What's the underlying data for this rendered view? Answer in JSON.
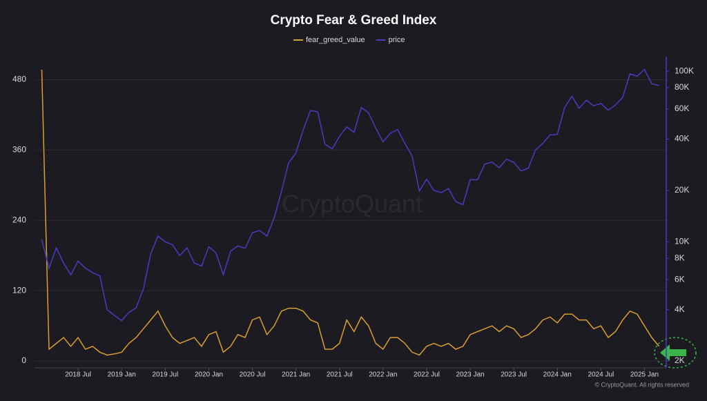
{
  "chart_data": {
    "type": "line",
    "title": "Crypto Fear & Greed Index",
    "watermark": "CryptoQuant",
    "footer": "© CryptoQuant. All rights reserved",
    "x": [
      "2018-02",
      "2018-03",
      "2018-04",
      "2018-05",
      "2018-06",
      "2018-07",
      "2018-08",
      "2018-09",
      "2018-10",
      "2018-11",
      "2018-12",
      "2019-01",
      "2019-02",
      "2019-03",
      "2019-04",
      "2019-05",
      "2019-06",
      "2019-07",
      "2019-08",
      "2019-09",
      "2019-10",
      "2019-11",
      "2019-12",
      "2020-01",
      "2020-02",
      "2020-03",
      "2020-04",
      "2020-05",
      "2020-06",
      "2020-07",
      "2020-08",
      "2020-09",
      "2020-10",
      "2020-11",
      "2020-12",
      "2021-01",
      "2021-02",
      "2021-03",
      "2021-04",
      "2021-05",
      "2021-06",
      "2021-07",
      "2021-08",
      "2021-09",
      "2021-10",
      "2021-11",
      "2021-12",
      "2022-01",
      "2022-02",
      "2022-03",
      "2022-04",
      "2022-05",
      "2022-06",
      "2022-07",
      "2022-08",
      "2022-09",
      "2022-10",
      "2022-11",
      "2022-12",
      "2023-01",
      "2023-02",
      "2023-03",
      "2023-04",
      "2023-05",
      "2023-06",
      "2023-07",
      "2023-08",
      "2023-09",
      "2023-10",
      "2023-11",
      "2023-12",
      "2024-01",
      "2024-02",
      "2024-03",
      "2024-04",
      "2024-05",
      "2024-06",
      "2024-07",
      "2024-08",
      "2024-09",
      "2024-10",
      "2024-11",
      "2024-12",
      "2025-01",
      "2025-02",
      "2025-03"
    ],
    "series": [
      {
        "name": "fear_greed_value",
        "color": "#d9a030",
        "values": [
          497,
          20,
          30,
          40,
          25,
          40,
          20,
          25,
          15,
          10,
          12,
          15,
          30,
          40,
          55,
          70,
          85,
          60,
          40,
          30,
          35,
          40,
          25,
          45,
          50,
          15,
          25,
          45,
          40,
          70,
          75,
          45,
          60,
          85,
          90,
          90,
          85,
          70,
          65,
          20,
          20,
          30,
          70,
          50,
          75,
          60,
          30,
          20,
          40,
          40,
          30,
          15,
          10,
          25,
          30,
          25,
          30,
          20,
          25,
          45,
          50,
          55,
          60,
          50,
          60,
          55,
          40,
          45,
          55,
          70,
          75,
          65,
          80,
          80,
          70,
          70,
          55,
          60,
          40,
          50,
          70,
          85,
          80,
          60,
          40,
          25
        ]
      },
      {
        "name": "price",
        "color": "#4a3bc0",
        "axis": "y2",
        "values": [
          10300,
          7000,
          9200,
          7500,
          6400,
          7700,
          7000,
          6600,
          6300,
          4000,
          3700,
          3450,
          3850,
          4100,
          5300,
          8500,
          10800,
          10000,
          9600,
          8300,
          9200,
          7500,
          7200,
          9350,
          8600,
          6400,
          8800,
          9450,
          9150,
          11300,
          11650,
          10800,
          13800,
          19700,
          29000,
          33100,
          45200,
          58800,
          57700,
          37300,
          35000,
          41500,
          47100,
          43800,
          61300,
          57000,
          46300,
          38500,
          43200,
          45500,
          37700,
          31800,
          19800,
          23300,
          20000,
          19400,
          20500,
          17200,
          16500,
          23100,
          23100,
          28500,
          29300,
          27200,
          30500,
          29200,
          26000,
          27000,
          34500,
          37700,
          42300,
          42600,
          61200,
          71300,
          60700,
          67500,
          62700,
          64600,
          59000,
          63300,
          70300,
          96400,
          93400,
          102400,
          84400,
          82500
        ]
      }
    ],
    "xlim": [
      "2018-01",
      "2025-04"
    ],
    "xticks": [
      {
        "value": "2018-07",
        "label": "2018 Jul"
      },
      {
        "value": "2019-01",
        "label": "2019 Jan"
      },
      {
        "value": "2019-07",
        "label": "2019 Jul"
      },
      {
        "value": "2020-01",
        "label": "2020 Jan"
      },
      {
        "value": "2020-07",
        "label": "2020 Jul"
      },
      {
        "value": "2021-01",
        "label": "2021 Jan"
      },
      {
        "value": "2021-07",
        "label": "2021 Jul"
      },
      {
        "value": "2022-01",
        "label": "2022 Jan"
      },
      {
        "value": "2022-07",
        "label": "2022 Jul"
      },
      {
        "value": "2023-01",
        "label": "2023 Jan"
      },
      {
        "value": "2023-07",
        "label": "2023 Jul"
      },
      {
        "value": "2024-01",
        "label": "2024 Jan"
      },
      {
        "value": "2024-07",
        "label": "2024 Jul"
      },
      {
        "value": "2025-01",
        "label": "2025 Jan"
      }
    ],
    "ylim": [
      0,
      510
    ],
    "yticks": [
      0,
      120,
      240,
      360,
      480
    ],
    "y2lim": [
      2000,
      113000
    ],
    "y2_log": true,
    "y2ticks": [
      {
        "value": 2000,
        "label": "2K"
      },
      {
        "value": 4000,
        "label": "4K"
      },
      {
        "value": 6000,
        "label": "6K"
      },
      {
        "value": 8000,
        "label": "8K"
      },
      {
        "value": 10000,
        "label": "10K"
      },
      {
        "value": 20000,
        "label": "20K"
      },
      {
        "value": 40000,
        "label": "40K"
      },
      {
        "value": 60000,
        "label": "60K"
      },
      {
        "value": 80000,
        "label": "80K"
      },
      {
        "value": 100000,
        "label": "100K"
      }
    ],
    "grid": true
  }
}
